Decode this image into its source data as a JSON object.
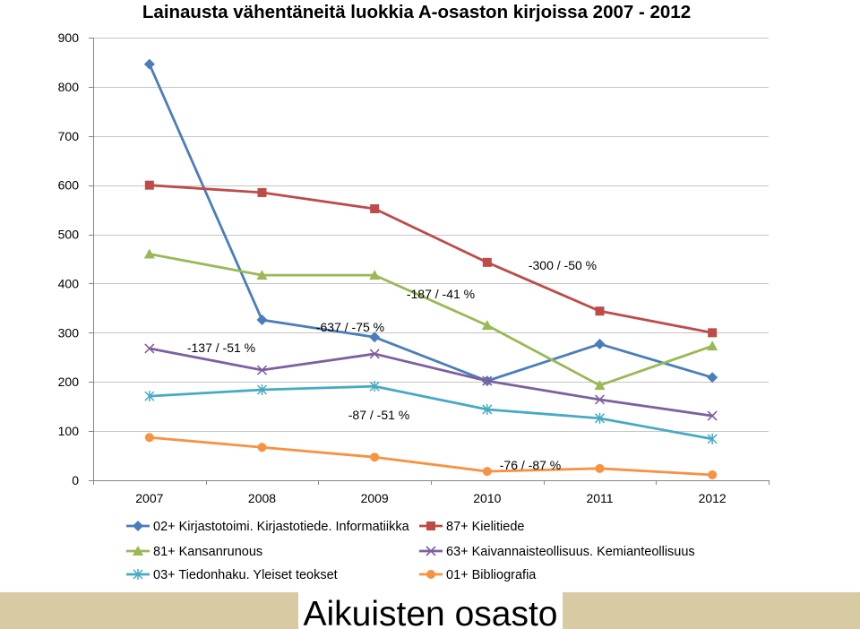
{
  "chart_data": {
    "type": "line",
    "title": "Lainausta vähentäneitä luokkia A-osaston kirjoissa 2007 - 2012",
    "categories": [
      "2007",
      "2008",
      "2009",
      "2010",
      "2011",
      "2012"
    ],
    "ylim": [
      0,
      900
    ],
    "yticks": [
      0,
      100,
      200,
      300,
      400,
      500,
      600,
      700,
      800,
      900
    ],
    "grid": true,
    "legend": "bottom",
    "series": [
      {
        "name": "02+ Kirjastotoimi. Kirjastotiede. Informatiikka",
        "color": "#4A7EBB",
        "marker": "diamond",
        "values": [
          846,
          326,
          291,
          202,
          277,
          209
        ]
      },
      {
        "name": "87+ Kielitiede",
        "color": "#BE4B48",
        "marker": "square",
        "values": [
          600,
          585,
          552,
          443,
          344,
          300
        ]
      },
      {
        "name": "81+ Kansanrunous",
        "color": "#98B954",
        "marker": "triangle",
        "values": [
          460,
          417,
          417,
          315,
          193,
          273
        ]
      },
      {
        "name": "63+ Kaivannaisteollisuus. Kemianteollisuus",
        "color": "#7D60A0",
        "marker": "x",
        "values": [
          268,
          224,
          257,
          202,
          164,
          131
        ]
      },
      {
        "name": "03+ Tiedonhaku. Yleiset teokset",
        "color": "#46AAC5",
        "marker": "star",
        "values": [
          171,
          184,
          191,
          144,
          126,
          84
        ]
      },
      {
        "name": "01+ Bibliografia",
        "color": "#F69240",
        "marker": "circle",
        "values": [
          87,
          67,
          47,
          18,
          24,
          11
        ]
      }
    ],
    "annotations": [
      "-137 / -51 %",
      "-637 / -75 %",
      "-187 / -41 %",
      "-300 / -50 %",
      "-87 / -51 %",
      "-76 / -87 %"
    ]
  },
  "banner": {
    "label": "Aikuisten osasto",
    "band_color": "#D8CBA3"
  }
}
